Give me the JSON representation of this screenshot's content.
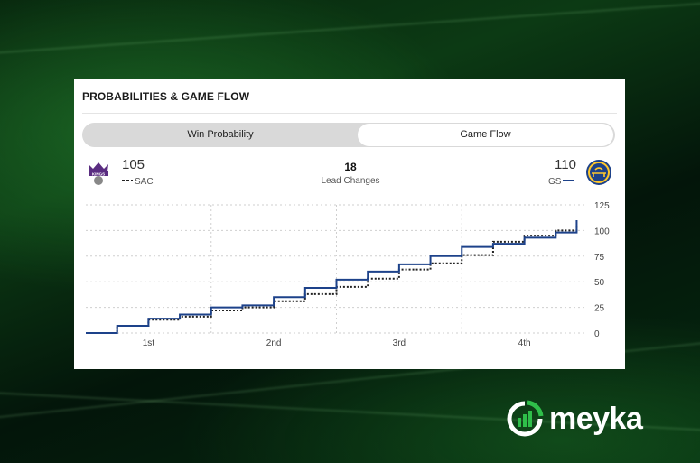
{
  "widget": {
    "title": "PROBABILITIES & GAME FLOW"
  },
  "tabs": [
    {
      "label": "Win Probability"
    },
    {
      "label": "Game Flow",
      "selected": true
    }
  ],
  "away_team": {
    "score": "105",
    "abbr": "SAC",
    "color": "#222222",
    "line_style": "dotted",
    "logo_text": "KINGS",
    "logo_color": "#5a2d81"
  },
  "home_team": {
    "score": "110",
    "abbr": "GS",
    "color": "#1d428a",
    "line_style": "solid",
    "logo_color": "#1d428a",
    "logo_accent": "#ffc72c"
  },
  "lead_changes": {
    "value": "18",
    "label": "Lead Changes"
  },
  "chart_data": {
    "type": "line",
    "x_unit": "game minute",
    "xlim": [
      0,
      48
    ],
    "ylim": [
      0,
      125
    ],
    "y_ticks": [
      125,
      100,
      75,
      50,
      25,
      0
    ],
    "x_tick_labels": [
      "1st",
      "2nd",
      "3rd",
      "4th"
    ],
    "grid": true,
    "series": [
      {
        "name": "GS",
        "x": [
          0,
          3,
          6,
          9,
          12,
          15,
          18,
          21,
          24,
          27,
          30,
          33,
          36,
          39,
          42,
          45,
          47
        ],
        "values": [
          0,
          7,
          14,
          18,
          25,
          27,
          35,
          44,
          52,
          60,
          67,
          75,
          84,
          87,
          93,
          98,
          110
        ]
      },
      {
        "name": "SAC",
        "x": [
          0,
          3,
          6,
          9,
          12,
          15,
          18,
          21,
          24,
          27,
          30,
          33,
          36,
          39,
          42,
          45,
          47
        ],
        "values": [
          0,
          7,
          13,
          16,
          22,
          25,
          31,
          38,
          45,
          53,
          62,
          68,
          76,
          89,
          95,
          100,
          105
        ]
      }
    ]
  },
  "brand": {
    "name": "meyka",
    "accent": "#2fbf4a"
  }
}
